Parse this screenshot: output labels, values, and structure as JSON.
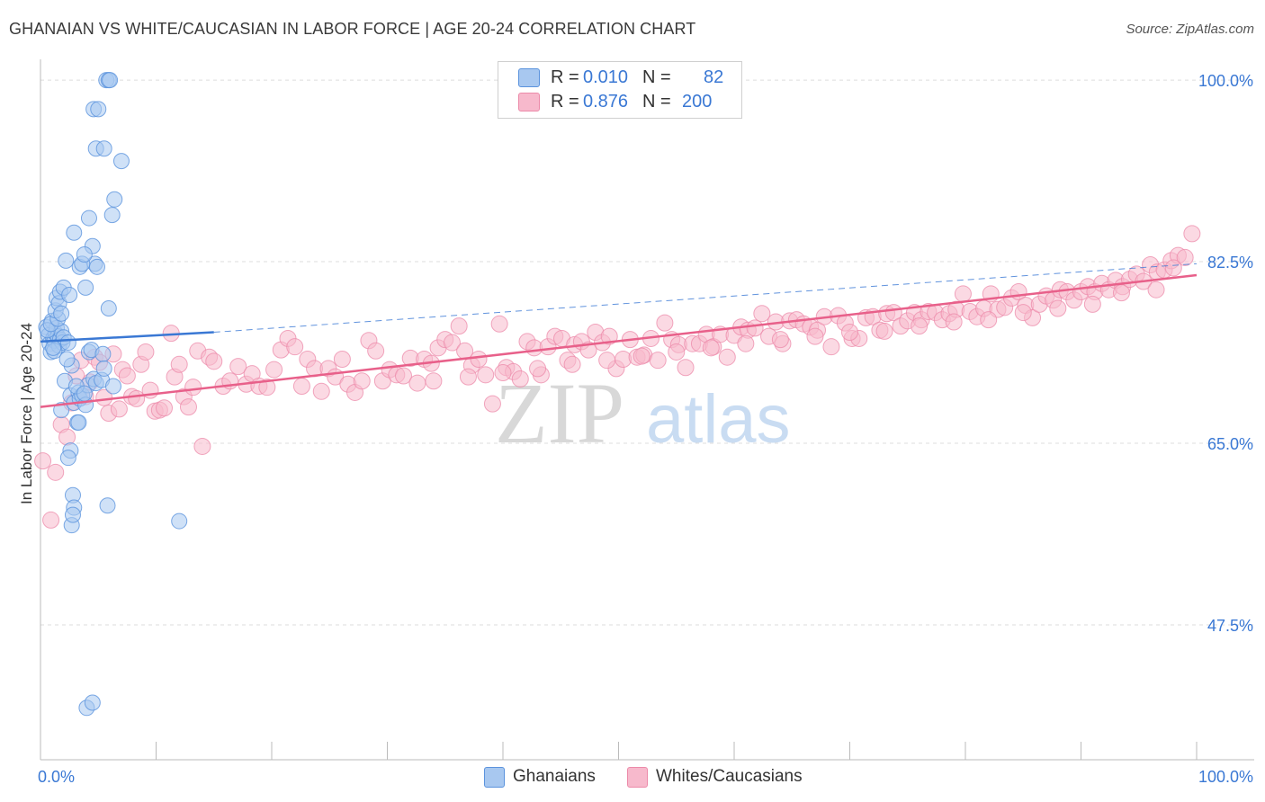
{
  "title": "GHANAIAN VS WHITE/CAUCASIAN IN LABOR FORCE | AGE 20-24 CORRELATION CHART",
  "source": "Source: ZipAtlas.com",
  "watermark": {
    "zip": "ZIP",
    "atlas": "atlas"
  },
  "colors": {
    "blue": "#3a78d4",
    "blue_fill": "#a8c8f0",
    "blue_stroke": "#5b93dd",
    "pink": "#e8608a",
    "pink_fill": "#f7b9cc",
    "pink_stroke": "#ec8aa9",
    "grid": "#dddddd",
    "axis_text": "#3a78d4"
  },
  "legend_top": [
    {
      "r_label": "R =",
      "r_value": "0.010",
      "n_label": "N =",
      "n_value": "82",
      "color": "#a8c8f0",
      "border": "#5b93dd"
    },
    {
      "r_label": "R =",
      "r_value": "0.876",
      "n_label": "N =",
      "n_value": "200",
      "color": "#f7b9cc",
      "border": "#ec8aa9"
    }
  ],
  "legend_bottom": [
    {
      "label": "Ghanaians",
      "color": "#a8c8f0",
      "border": "#5b93dd"
    },
    {
      "label": "Whites/Caucasians",
      "color": "#f7b9cc",
      "border": "#ec8aa9"
    }
  ],
  "chart_data": {
    "type": "scatter",
    "title": "GHANAIAN VS WHITE/CAUCASIAN IN LABOR FORCE | AGE 20-24 CORRELATION CHART",
    "xlabel": "",
    "ylabel": "In Labor Force | Age 20-24",
    "xlim": [
      0,
      100
    ],
    "ylim": [
      34.5,
      102
    ],
    "x_tick_labels": [
      "0.0%",
      "100.0%"
    ],
    "y_ticks": [
      47.5,
      65.0,
      82.5,
      100.0
    ],
    "y_tick_labels": [
      "47.5%",
      "65.0%",
      "82.5%",
      "100.0%"
    ],
    "legend_position": "top-center",
    "series": [
      {
        "name": "Ghanaians",
        "R": 0.01,
        "N": 82,
        "trend": {
          "x0": 0,
          "y0": 74.8,
          "x1": 15,
          "y1": 75.7,
          "dashed_to_x": 100,
          "dashed_to_y": 82.3
        },
        "points": [
          [
            0.5,
            76.2
          ],
          [
            0.7,
            75.4
          ],
          [
            0.8,
            74.6
          ],
          [
            0.9,
            73.8
          ],
          [
            1.0,
            76.8
          ],
          [
            1.1,
            75.1
          ],
          [
            1.2,
            74.9
          ],
          [
            1.3,
            75.6
          ],
          [
            1.4,
            76.1
          ],
          [
            1.5,
            75.3
          ],
          [
            1.6,
            74.4
          ],
          [
            1.7,
            75.0
          ],
          [
            1.8,
            75.8
          ],
          [
            1.9,
            74.7
          ],
          [
            0.6,
            75.9
          ],
          [
            0.9,
            76.5
          ],
          [
            1.2,
            73.9
          ],
          [
            1.5,
            77.0
          ],
          [
            2.0,
            75.2
          ],
          [
            1.1,
            74.2
          ],
          [
            1.3,
            77.8
          ],
          [
            1.4,
            79.0
          ],
          [
            1.6,
            78.5
          ],
          [
            1.7,
            79.6
          ],
          [
            1.8,
            77.5
          ],
          [
            2.0,
            80.0
          ],
          [
            2.2,
            82.6
          ],
          [
            2.5,
            79.3
          ],
          [
            2.4,
            74.7
          ],
          [
            2.7,
            72.5
          ],
          [
            2.3,
            73.1
          ],
          [
            2.1,
            71.0
          ],
          [
            1.8,
            68.2
          ],
          [
            2.6,
            69.6
          ],
          [
            2.9,
            68.9
          ],
          [
            3.3,
            69.9
          ],
          [
            3.4,
            69.3
          ],
          [
            3.6,
            69.6
          ],
          [
            3.9,
            68.7
          ],
          [
            4.1,
            70.6
          ],
          [
            4.6,
            71.2
          ],
          [
            4.8,
            70.8
          ],
          [
            3.1,
            70.5
          ],
          [
            2.6,
            64.3
          ],
          [
            2.4,
            63.6
          ],
          [
            2.7,
            57.1
          ],
          [
            2.8,
            60.0
          ],
          [
            2.9,
            58.8
          ],
          [
            2.8,
            58.1
          ],
          [
            3.2,
            67.0
          ],
          [
            3.3,
            67.0
          ],
          [
            3.8,
            69.8
          ],
          [
            4.2,
            73.8
          ],
          [
            4.4,
            74.0
          ],
          [
            5.3,
            71.1
          ],
          [
            5.4,
            73.6
          ],
          [
            5.5,
            72.2
          ],
          [
            5.9,
            78.0
          ],
          [
            6.3,
            70.5
          ],
          [
            6.2,
            87.0
          ],
          [
            6.4,
            88.5
          ],
          [
            4.7,
            82.3
          ],
          [
            4.9,
            82.0
          ],
          [
            3.9,
            80.0
          ],
          [
            2.9,
            85.3
          ],
          [
            4.5,
            84.0
          ],
          [
            3.4,
            82.0
          ],
          [
            3.6,
            82.3
          ],
          [
            3.8,
            83.2
          ],
          [
            4.2,
            86.7
          ],
          [
            4.8,
            93.4
          ],
          [
            4.6,
            97.2
          ],
          [
            5.0,
            97.2
          ],
          [
            7.0,
            92.2
          ],
          [
            5.7,
            100.0
          ],
          [
            5.9,
            100.0
          ],
          [
            6.0,
            100.0
          ],
          [
            5.5,
            93.4
          ],
          [
            5.8,
            59.0
          ],
          [
            12.0,
            57.5
          ],
          [
            4.0,
            39.5
          ],
          [
            4.5,
            40.0
          ]
        ]
      },
      {
        "name": "Whites/Caucasians",
        "R": 0.876,
        "N": 200,
        "trend": {
          "x0": 0,
          "y0": 68.5,
          "x1": 100,
          "y1": 81.2
        },
        "points": [
          [
            0.2,
            63.3
          ],
          [
            0.9,
            57.6
          ],
          [
            1.3,
            62.2
          ],
          [
            1.8,
            66.8
          ],
          [
            2.3,
            65.6
          ],
          [
            2.7,
            68.9
          ],
          [
            3.1,
            71.5
          ],
          [
            3.5,
            73.0
          ],
          [
            3.9,
            69.5
          ],
          [
            4.3,
            70.9
          ],
          [
            4.7,
            73.3
          ],
          [
            5.1,
            72.8
          ],
          [
            5.5,
            69.4
          ],
          [
            5.9,
            67.9
          ],
          [
            6.3,
            73.6
          ],
          [
            6.8,
            68.3
          ],
          [
            7.1,
            72.1
          ],
          [
            7.5,
            71.5
          ],
          [
            7.9,
            69.5
          ],
          [
            8.3,
            69.3
          ],
          [
            8.7,
            72.6
          ],
          [
            9.1,
            73.8
          ],
          [
            9.5,
            70.1
          ],
          [
            9.9,
            68.1
          ],
          [
            10.3,
            68.2
          ],
          [
            10.7,
            68.4
          ],
          [
            11.3,
            75.6
          ],
          [
            11.6,
            71.4
          ],
          [
            12.0,
            72.6
          ],
          [
            12.4,
            69.5
          ],
          [
            12.8,
            68.5
          ],
          [
            13.2,
            70.4
          ],
          [
            13.6,
            73.9
          ],
          [
            14.0,
            64.7
          ],
          [
            14.6,
            73.3
          ],
          [
            15.0,
            72.9
          ],
          [
            15.8,
            70.5
          ],
          [
            16.4,
            71.0
          ],
          [
            17.1,
            72.4
          ],
          [
            17.8,
            70.7
          ],
          [
            18.3,
            71.7
          ],
          [
            18.9,
            70.5
          ],
          [
            19.6,
            70.4
          ],
          [
            20.2,
            72.1
          ],
          [
            20.8,
            74.0
          ],
          [
            21.4,
            75.1
          ],
          [
            22.0,
            74.3
          ],
          [
            22.6,
            70.5
          ],
          [
            23.1,
            73.1
          ],
          [
            23.7,
            72.2
          ],
          [
            24.3,
            70.0
          ],
          [
            24.9,
            72.2
          ],
          [
            25.5,
            71.4
          ],
          [
            26.1,
            73.1
          ],
          [
            26.6,
            70.7
          ],
          [
            27.2,
            69.9
          ],
          [
            27.8,
            71.0
          ],
          [
            28.4,
            74.9
          ],
          [
            29.0,
            73.9
          ],
          [
            29.6,
            71.0
          ],
          [
            30.2,
            72.1
          ],
          [
            30.8,
            71.6
          ],
          [
            31.4,
            71.5
          ],
          [
            32.0,
            73.2
          ],
          [
            32.6,
            70.8
          ],
          [
            33.2,
            73.1
          ],
          [
            33.8,
            72.7
          ],
          [
            34.4,
            74.2
          ],
          [
            35.0,
            75.0
          ],
          [
            35.6,
            74.7
          ],
          [
            36.2,
            76.3
          ],
          [
            36.7,
            73.9
          ],
          [
            37.3,
            72.5
          ],
          [
            37.9,
            73.1
          ],
          [
            38.5,
            71.6
          ],
          [
            39.1,
            68.8
          ],
          [
            39.7,
            76.5
          ],
          [
            40.3,
            72.3
          ],
          [
            40.9,
            71.9
          ],
          [
            41.5,
            71.2
          ],
          [
            42.1,
            74.8
          ],
          [
            42.7,
            74.2
          ],
          [
            43.3,
            71.6
          ],
          [
            43.9,
            74.3
          ],
          [
            44.5,
            75.3
          ],
          [
            45.1,
            75.1
          ],
          [
            45.6,
            73.0
          ],
          [
            46.2,
            74.5
          ],
          [
            46.8,
            74.8
          ],
          [
            47.4,
            74.0
          ],
          [
            48.0,
            75.7
          ],
          [
            48.6,
            74.7
          ],
          [
            49.2,
            75.3
          ],
          [
            49.8,
            72.2
          ],
          [
            50.4,
            73.1
          ],
          [
            51.0,
            75.0
          ],
          [
            51.6,
            73.3
          ],
          [
            52.2,
            73.5
          ],
          [
            52.8,
            75.1
          ],
          [
            53.4,
            73.0
          ],
          [
            54.0,
            76.6
          ],
          [
            54.6,
            75.0
          ],
          [
            55.2,
            74.5
          ],
          [
            55.8,
            72.3
          ],
          [
            56.4,
            74.6
          ],
          [
            57.0,
            74.6
          ],
          [
            57.6,
            75.5
          ],
          [
            58.2,
            74.3
          ],
          [
            58.8,
            75.5
          ],
          [
            59.4,
            73.3
          ],
          [
            60.0,
            75.4
          ],
          [
            60.6,
            76.2
          ],
          [
            61.2,
            75.9
          ],
          [
            61.8,
            76.1
          ],
          [
            62.4,
            77.5
          ],
          [
            63.0,
            75.3
          ],
          [
            63.6,
            76.7
          ],
          [
            64.2,
            74.6
          ],
          [
            64.8,
            76.8
          ],
          [
            65.4,
            76.9
          ],
          [
            66.0,
            76.5
          ],
          [
            66.6,
            76.2
          ],
          [
            67.2,
            75.9
          ],
          [
            67.8,
            77.2
          ],
          [
            68.4,
            74.3
          ],
          [
            69.0,
            77.3
          ],
          [
            69.6,
            76.6
          ],
          [
            70.2,
            75.1
          ],
          [
            70.8,
            75.1
          ],
          [
            71.4,
            77.1
          ],
          [
            72.0,
            77.2
          ],
          [
            72.6,
            75.9
          ],
          [
            73.2,
            77.5
          ],
          [
            73.8,
            77.6
          ],
          [
            74.4,
            76.3
          ],
          [
            75.0,
            76.8
          ],
          [
            75.6,
            77.6
          ],
          [
            76.2,
            76.9
          ],
          [
            76.8,
            77.7
          ],
          [
            77.4,
            77.6
          ],
          [
            78.0,
            76.9
          ],
          [
            78.6,
            77.5
          ],
          [
            79.2,
            77.9
          ],
          [
            79.8,
            79.4
          ],
          [
            80.4,
            77.7
          ],
          [
            81.0,
            77.2
          ],
          [
            81.6,
            78.0
          ],
          [
            82.2,
            79.4
          ],
          [
            82.8,
            77.9
          ],
          [
            83.4,
            78.1
          ],
          [
            84.0,
            79.0
          ],
          [
            84.6,
            79.6
          ],
          [
            85.2,
            78.3
          ],
          [
            85.8,
            77.1
          ],
          [
            86.4,
            78.4
          ],
          [
            87.0,
            79.2
          ],
          [
            87.6,
            78.8
          ],
          [
            88.2,
            79.8
          ],
          [
            88.8,
            79.6
          ],
          [
            89.4,
            78.8
          ],
          [
            90.0,
            79.6
          ],
          [
            90.6,
            80.1
          ],
          [
            91.2,
            79.6
          ],
          [
            91.8,
            80.4
          ],
          [
            92.4,
            79.8
          ],
          [
            93.0,
            80.7
          ],
          [
            93.6,
            80.1
          ],
          [
            94.2,
            80.8
          ],
          [
            94.8,
            81.3
          ],
          [
            95.4,
            80.6
          ],
          [
            96.0,
            82.2
          ],
          [
            96.6,
            81.5
          ],
          [
            97.2,
            81.7
          ],
          [
            97.8,
            82.6
          ],
          [
            98.4,
            83.1
          ],
          [
            99.0,
            82.9
          ],
          [
            99.6,
            85.2
          ],
          [
            98.0,
            81.9
          ],
          [
            96.5,
            79.8
          ],
          [
            93.5,
            79.5
          ],
          [
            91.0,
            78.4
          ],
          [
            88.0,
            78.0
          ],
          [
            85.0,
            77.6
          ],
          [
            82.0,
            76.9
          ],
          [
            79.0,
            76.7
          ],
          [
            76.0,
            76.3
          ],
          [
            73.0,
            75.8
          ],
          [
            70.0,
            75.7
          ],
          [
            67.0,
            75.3
          ],
          [
            64.0,
            75.0
          ],
          [
            61.0,
            74.6
          ],
          [
            58.0,
            74.2
          ],
          [
            55.0,
            73.8
          ],
          [
            52.0,
            73.4
          ],
          [
            49.0,
            73.0
          ],
          [
            46.0,
            72.6
          ],
          [
            43.0,
            72.2
          ],
          [
            40.0,
            71.8
          ],
          [
            37.0,
            71.4
          ],
          [
            34.0,
            71.0
          ]
        ]
      }
    ]
  }
}
